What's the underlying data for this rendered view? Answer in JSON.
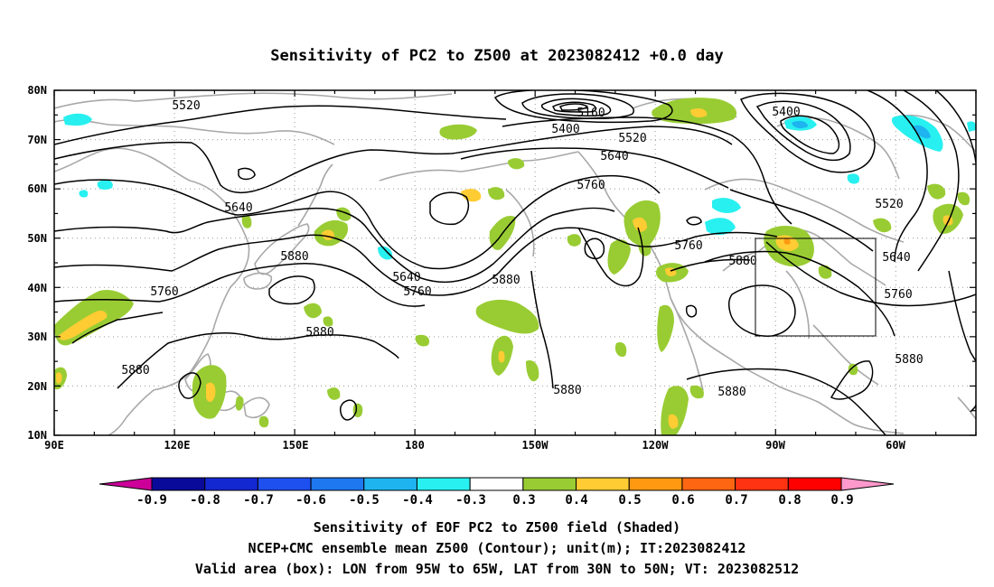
{
  "title": "Sensitivity of PC2 to Z500 at 2023082412 +0.0 day",
  "map": {
    "lon_ticks": [
      "90E",
      "120E",
      "150E",
      "180",
      "150W",
      "120W",
      "90W",
      "60W"
    ],
    "lat_ticks": [
      "80N",
      "70N",
      "60N",
      "50N",
      "40N",
      "30N",
      "20N",
      "10N"
    ],
    "grid": "dotted",
    "box": {
      "lon": [
        "95W",
        "65W"
      ],
      "lat": [
        "30N",
        "50N"
      ]
    }
  },
  "contour_labels": [
    {
      "value": "5520",
      "where": "Siberia"
    },
    {
      "value": "5160",
      "where": "Arctic low"
    },
    {
      "value": "5400",
      "where": "Arctic"
    },
    {
      "value": "5520",
      "where": "Bering Sea"
    },
    {
      "value": "5400",
      "where": "Hudson Bay"
    },
    {
      "value": "5640",
      "where": "Alaska"
    },
    {
      "value": "5760",
      "where": "Gulf of Alaska"
    },
    {
      "value": "5640",
      "where": "Japan"
    },
    {
      "value": "5880",
      "where": "Japan south"
    },
    {
      "value": "5760",
      "where": "China"
    },
    {
      "value": "5880",
      "where": "Pacific"
    },
    {
      "value": "5640",
      "where": "Central Pacific"
    },
    {
      "value": "5760",
      "where": "Central Pacific"
    },
    {
      "value": "5880",
      "where": "Subtropical Pacific"
    },
    {
      "value": "5880",
      "where": "South China Sea"
    },
    {
      "value": "5880",
      "where": "Eastern Pacific"
    },
    {
      "value": "5760",
      "where": "Pacific Northwest"
    },
    {
      "value": "5880",
      "where": "US Central"
    },
    {
      "value": "5880",
      "where": "Mexico"
    },
    {
      "value": "5520",
      "where": "Labrador"
    },
    {
      "value": "5640",
      "where": "Atlantic Canada"
    },
    {
      "value": "5760",
      "where": "Northeast US"
    },
    {
      "value": "5880",
      "where": "Atlantic"
    }
  ],
  "colorbar": {
    "labels": [
      "-0.9",
      "-0.8",
      "-0.7",
      "-0.6",
      "-0.5",
      "-0.4",
      "-0.3",
      "0.3",
      "0.4",
      "0.5",
      "0.6",
      "0.7",
      "0.8",
      "0.9"
    ],
    "colors": [
      "#0a0a9a",
      "#1428d2",
      "#1e50f0",
      "#1e78f0",
      "#1eb4f0",
      "#28f0f0",
      "#ffffff",
      "#99cc33",
      "#ffcc33",
      "#ff9911",
      "#ff6611",
      "#ff3311",
      "#ff0000"
    ],
    "end_low": "#cc0099",
    "end_high": "#ff99cc"
  },
  "captions": [
    "Sensitivity of EOF PC2 to Z500 field (Shaded)",
    "NCEP+CMC ensemble mean Z500 (Contour); unit(m); IT:2023082412",
    "Valid area (box): LON from 95W to 65W, LAT from 30N to 50N; VT: 2023082512"
  ]
}
